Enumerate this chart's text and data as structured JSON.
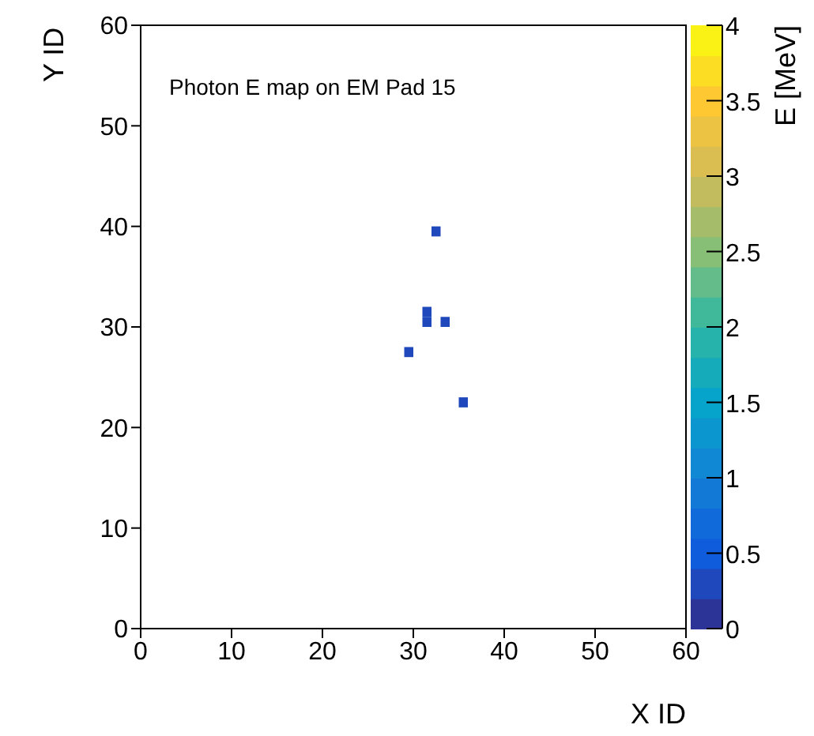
{
  "chart_data": {
    "type": "scatter",
    "title": "Photon E map on EM Pad 15",
    "xlabel": "X ID",
    "ylabel": "Y ID",
    "clabel": "E [MeV]",
    "x": [
      32.5,
      31.5,
      31.5,
      33.5,
      29.5,
      35.5
    ],
    "values": [
      39.5,
      31.5,
      30.5,
      30.5,
      27.5,
      22.5
    ],
    "cvalues": [
      0.3,
      0.3,
      0.3,
      0.3,
      0.3,
      0.3
    ],
    "marker": "square",
    "xlim": [
      0,
      60
    ],
    "ylim": [
      0,
      60
    ],
    "xticks": [
      0,
      10,
      20,
      30,
      40,
      50,
      60
    ],
    "yticks": [
      0,
      10,
      20,
      30,
      40,
      50,
      60
    ],
    "clim": [
      0,
      4
    ],
    "cticks": [
      0,
      0.5,
      1,
      1.5,
      2,
      2.5,
      3,
      3.5,
      4
    ],
    "grid": false,
    "legend": false
  }
}
